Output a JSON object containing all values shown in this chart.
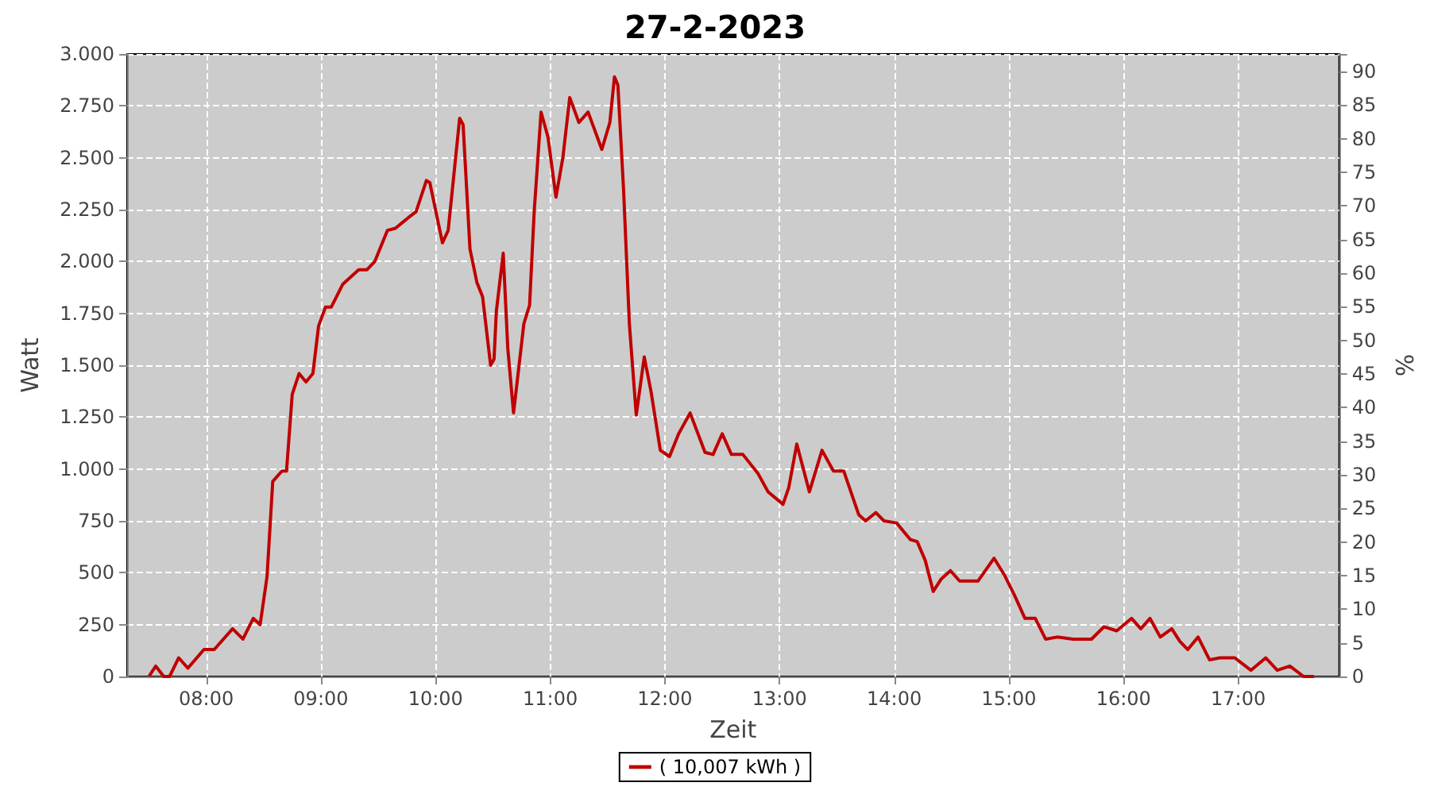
{
  "chart_data": {
    "type": "line",
    "title": "27-2-2023",
    "xlabel": "Zeit",
    "ylabel": "Watt",
    "y2label": "%",
    "xlim": [
      7.31,
      17.88
    ],
    "xticks": [
      {
        "value": 8,
        "label": "08:00"
      },
      {
        "value": 9,
        "label": "09:00"
      },
      {
        "value": 10,
        "label": "10:00"
      },
      {
        "value": 11,
        "label": "11:00"
      },
      {
        "value": 12,
        "label": "12:00"
      },
      {
        "value": 13,
        "label": "13:00"
      },
      {
        "value": 14,
        "label": "14:00"
      },
      {
        "value": 15,
        "label": "15:00"
      },
      {
        "value": 16,
        "label": "16:00"
      },
      {
        "value": 17,
        "label": "17:00"
      }
    ],
    "ylim": [
      0,
      3000
    ],
    "yticks": [
      0,
      250,
      500,
      750,
      {
        "value": 1000,
        "label": "1.000"
      },
      {
        "value": 1250,
        "label": "1.250"
      },
      {
        "value": 1500,
        "label": "1.500"
      },
      {
        "value": 1750,
        "label": "1.750"
      },
      {
        "value": 2000,
        "label": "2.000"
      },
      {
        "value": 2250,
        "label": "2.250"
      },
      {
        "value": 2500,
        "label": "2.500"
      },
      {
        "value": 2750,
        "label": "2.750"
      },
      {
        "value": 3000,
        "label": "3.000"
      }
    ],
    "y2lim": [
      0,
      92.6
    ],
    "y2ticks": [
      0,
      5,
      10,
      15,
      20,
      25,
      30,
      35,
      40,
      45,
      50,
      55,
      60,
      65,
      70,
      75,
      80,
      85,
      90
    ],
    "grid": true,
    "legend": "bottom",
    "marker": "none",
    "line_style": "solid",
    "series": [
      {
        "name": "( 10,007 kWh )",
        "color": "#c00000",
        "x": [
          7.5,
          7.56,
          7.63,
          7.68,
          7.76,
          7.84,
          7.98,
          8.07,
          8.23,
          8.32,
          8.41,
          8.47,
          8.53,
          8.58,
          8.66,
          8.7,
          8.75,
          8.81,
          8.87,
          8.93,
          8.98,
          9.04,
          9.09,
          9.19,
          9.33,
          9.4,
          9.47,
          9.58,
          9.65,
          9.76,
          9.83,
          9.92,
          9.95,
          10.06,
          10.11,
          10.21,
          10.24,
          10.3,
          10.36,
          10.41,
          10.48,
          10.51,
          10.53,
          10.59,
          10.63,
          10.68,
          10.77,
          10.82,
          10.86,
          10.92,
          10.98,
          11.05,
          11.11,
          11.17,
          11.25,
          11.33,
          11.45,
          11.52,
          11.56,
          11.59,
          11.64,
          11.69,
          11.75,
          11.82,
          11.88,
          11.96,
          12.04,
          12.12,
          12.22,
          12.35,
          12.42,
          12.5,
          12.58,
          12.68,
          12.81,
          12.9,
          13.03,
          13.08,
          13.15,
          13.26,
          13.37,
          13.47,
          13.56,
          13.69,
          13.75,
          13.84,
          13.91,
          14.02,
          14.14,
          14.2,
          14.27,
          14.34,
          14.41,
          14.49,
          14.57,
          14.73,
          14.87,
          14.96,
          15.05,
          15.14,
          15.23,
          15.32,
          15.42,
          15.56,
          15.72,
          15.83,
          15.94,
          16.07,
          16.15,
          16.23,
          16.32,
          16.42,
          16.49,
          16.56,
          16.65,
          16.75,
          16.84,
          16.97,
          17.11,
          17.24,
          17.34,
          17.45,
          17.57,
          17.66
        ],
        "values": [
          0,
          50,
          0,
          0,
          90,
          40,
          130,
          130,
          230,
          180,
          280,
          250,
          480,
          940,
          990,
          990,
          1360,
          1460,
          1420,
          1460,
          1690,
          1780,
          1780,
          1890,
          1960,
          1960,
          2000,
          2150,
          2160,
          2210,
          2240,
          2390,
          2380,
          2090,
          2150,
          2690,
          2660,
          2060,
          1900,
          1830,
          1500,
          1530,
          1760,
          2040,
          1580,
          1270,
          1700,
          1790,
          2240,
          2720,
          2600,
          2310,
          2500,
          2790,
          2670,
          2720,
          2540,
          2670,
          2890,
          2850,
          2340,
          1700,
          1260,
          1540,
          1370,
          1090,
          1060,
          1170,
          1270,
          1080,
          1070,
          1170,
          1070,
          1070,
          980,
          890,
          830,
          910,
          1120,
          890,
          1090,
          990,
          990,
          780,
          750,
          790,
          750,
          740,
          660,
          650,
          560,
          410,
          470,
          510,
          460,
          460,
          570,
          490,
          390,
          280,
          280,
          180,
          190,
          180,
          180,
          240,
          220,
          280,
          230,
          280,
          190,
          230,
          170,
          130,
          190,
          80,
          90,
          90,
          30,
          90,
          30,
          50,
          0,
          0
        ]
      }
    ]
  }
}
